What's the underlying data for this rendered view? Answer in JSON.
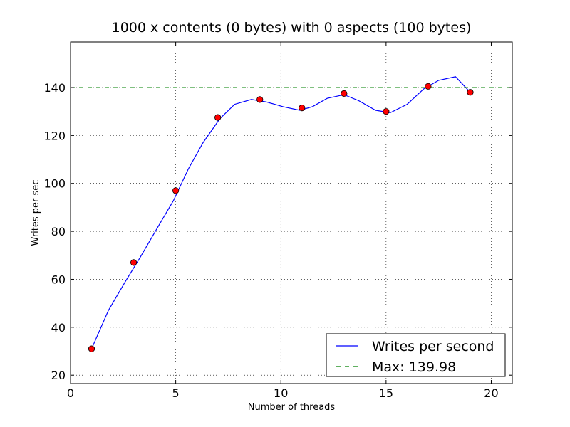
{
  "chart_data": {
    "type": "line",
    "title": "1000 x contents (0 bytes) with 0 aspects (100 bytes)",
    "xlabel": "Number of threads",
    "ylabel": "Writes per sec",
    "xlim": [
      0,
      21
    ],
    "ylim": [
      16.5,
      159
    ],
    "xticks": [
      0,
      5,
      10,
      15,
      20
    ],
    "yticks": [
      20,
      40,
      60,
      80,
      100,
      120,
      140
    ],
    "grid": true,
    "legend_position": "lower-right",
    "series": [
      {
        "name": "Writes per second",
        "style": "line",
        "color": "#0000ff",
        "x": [
          1,
          1.8,
          2.6,
          3.3,
          4.1,
          4.9,
          5.6,
          6.3,
          7.1,
          7.8,
          8.6,
          9.3,
          10.1,
          10.9,
          11.5,
          12.2,
          13.0,
          13.7,
          14.5,
          15.2,
          16.0,
          16.8,
          17.5,
          18.3,
          19.0
        ],
        "y": [
          31,
          47,
          59,
          69,
          81,
          93,
          106,
          117,
          127,
          133,
          135,
          134,
          132,
          130.5,
          132,
          135.5,
          137,
          134.5,
          130.5,
          129.5,
          133,
          139.5,
          143,
          144.5,
          138
        ]
      },
      {
        "name": "Max: 139.98",
        "style": "dashed",
        "color": "#008000",
        "value": 139.98
      }
    ],
    "markers": {
      "color": "#ff0000",
      "x": [
        1,
        3,
        5,
        7,
        9,
        11,
        13,
        15,
        17,
        19
      ],
      "y": [
        31,
        67,
        97,
        127.5,
        135,
        131.5,
        137.5,
        130,
        140.5,
        138
      ]
    }
  }
}
